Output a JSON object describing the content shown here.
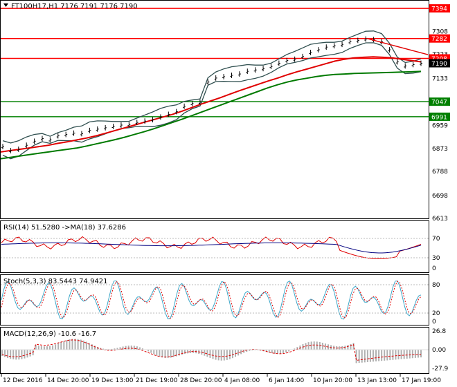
{
  "main": {
    "symbol_line": "FT100H17,H1  7176 7191 7176 7190",
    "levels": [
      {
        "label": "7394",
        "price": 7394,
        "color": "#ff0000"
      },
      {
        "label": "7282",
        "price": 7282,
        "color": "#ff0000"
      },
      {
        "label": "7208",
        "price": 7208,
        "color": "#ff0000"
      },
      {
        "label": "7047",
        "price": 7047,
        "color": "#008000"
      },
      {
        "label": "6991",
        "price": 6991,
        "color": "#008000"
      }
    ],
    "current_price_label": "7190",
    "axis_labels": [
      "7308",
      "7223",
      "7133",
      "6959",
      "6873",
      "6788",
      "6698",
      "6613"
    ],
    "axis_values": [
      7308,
      7223,
      7133,
      6959,
      6873,
      6788,
      6698,
      6613
    ],
    "ylim": [
      6613,
      7420
    ]
  },
  "rsi": {
    "title": "RSI(14) 51.5280  ->MA(18) 37.6286",
    "axis_labels": [
      "70",
      "30",
      "0"
    ]
  },
  "stoch": {
    "title": "Stoch(5,3,3) 83.5443 74.9421",
    "axis_labels": [
      "80",
      "20",
      "0"
    ]
  },
  "macd": {
    "title": "MACD(12,26,9) -10.6 -16.7",
    "axis_labels": [
      "26.8",
      "0.00",
      "-27.9"
    ]
  },
  "time_labels": [
    "12 Dec 2016",
    "14 Dec 20:00",
    "19 Dec 13:00",
    "21 Dec 19:00",
    "28 Dec 20:00",
    "4 Jan 08:00",
    "6 Jan 14:00",
    "10 Jan 20:00",
    "13 Jan 13:00",
    "17 Jan 19:00"
  ],
  "chart_data": {
    "type": "line",
    "price_close_series": [
      6880,
      6865,
      6870,
      6885,
      6900,
      6910,
      6905,
      6920,
      6925,
      6930,
      6928,
      6940,
      6945,
      6950,
      6955,
      6960,
      6962,
      6970,
      6975,
      6980,
      6990,
      7000,
      7010,
      7030,
      7040,
      7045,
      7120,
      7135,
      7140,
      7145,
      7150,
      7160,
      7165,
      7170,
      7178,
      7190,
      7200,
      7205,
      7215,
      7230,
      7240,
      7250,
      7255,
      7260,
      7270,
      7275,
      7280,
      7278,
      7270,
      7240,
      7195,
      7180,
      7185,
      7190
    ],
    "ma_red_series": [
      6860,
      6865,
      6870,
      6875,
      6880,
      6885,
      6892,
      6898,
      6905,
      6912,
      6920,
      6930,
      6940,
      6950,
      6960,
      6970,
      6980,
      6990,
      7000,
      7012,
      7025,
      7038,
      7050,
      7062,
      7075,
      7088,
      7100,
      7112,
      7124,
      7135,
      7147,
      7158,
      7168,
      7178,
      7188,
      7198,
      7205,
      7210,
      7212,
      7214,
      7212,
      7210,
      7205,
      7200,
      7195
    ],
    "ma_green_series": [
      6835,
      6840,
      6845,
      6850,
      6855,
      6860,
      6865,
      6870,
      6875,
      6882,
      6890,
      6898,
      6906,
      6915,
      6925,
      6935,
      6946,
      6958,
      6970,
      6982,
      6995,
      7008,
      7021,
      7034,
      7047,
      7060,
      7073,
      7086,
      7099,
      7110,
      7120,
      7128,
      7134,
      7140,
      7145,
      7148,
      7150,
      7152,
      7153,
      7154,
      7155,
      7156,
      7157,
      7158,
      7160
    ]
  }
}
